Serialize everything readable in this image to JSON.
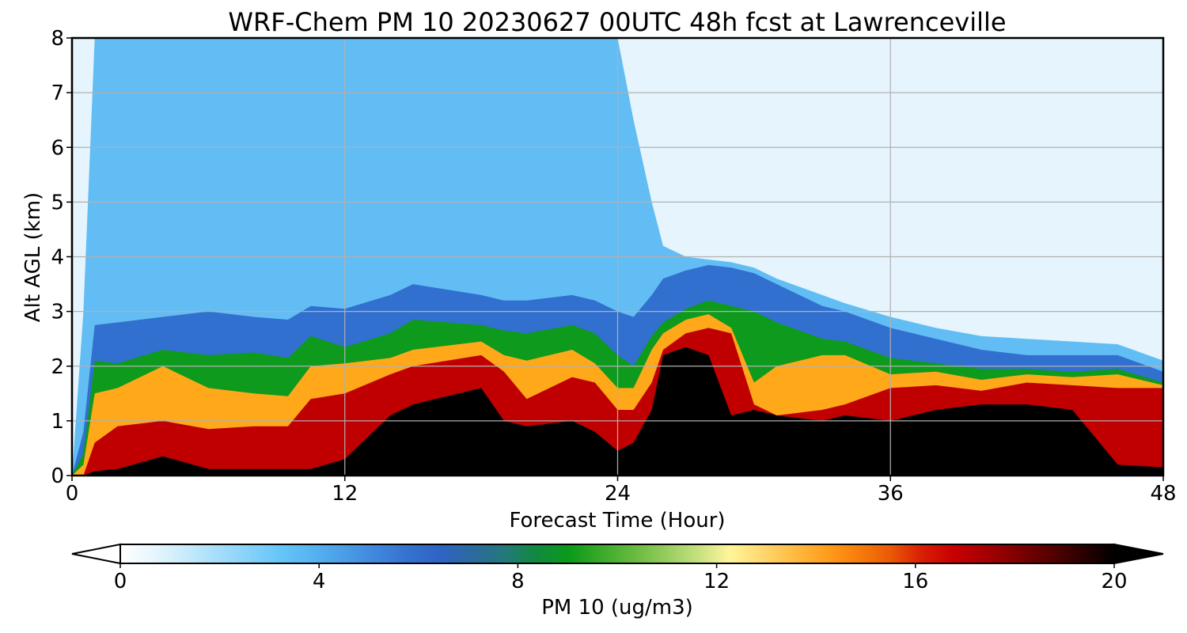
{
  "chart_data": {
    "type": "heatmap",
    "title": "WRF-Chem PM 10  20230627 00UTC 48h fcst at Lawrenceville",
    "xlabel": "Forecast Time (Hour)",
    "ylabel": "Alt AGL (km)",
    "xlim": [
      0,
      48
    ],
    "ylim": [
      0,
      8
    ],
    "xticks": [
      "0",
      "12",
      "24",
      "36",
      "48"
    ],
    "yticks": [
      "0",
      "1",
      "2",
      "3",
      "4",
      "5",
      "6",
      "7",
      "8"
    ],
    "grid": true,
    "colorbar": {
      "label": "PM 10  (ug/m3)",
      "range": [
        0,
        20
      ],
      "ticks": [
        "0",
        "4",
        "8",
        "12",
        "16",
        "20"
      ],
      "extend": "both",
      "colors": [
        "#ffffff",
        "#e8f6fd",
        "#c9ebfb",
        "#a7defa",
        "#86d2fa",
        "#66c5f7",
        "#56b3f0",
        "#4a9de6",
        "#3f86dc",
        "#3571cf",
        "#2f63c4",
        "#2c6a9e",
        "#23787a",
        "#108a3e",
        "#0a9a1a",
        "#3aaa2a",
        "#66ba3e",
        "#95cc5c",
        "#c4e07e",
        "#fff59a",
        "#ffd870",
        "#ffbb44",
        "#ff9e1c",
        "#f77e0c",
        "#eb5a06",
        "#d91e04",
        "#c80000",
        "#a50000",
        "#7e0000",
        "#560000",
        "#2c0000",
        "#000000"
      ]
    },
    "x_hours": [
      0,
      0.5,
      1,
      2,
      4,
      6,
      8,
      9.5,
      10.5,
      12,
      14,
      15,
      18,
      19,
      20,
      22,
      23,
      24,
      24.7,
      25.5,
      26,
      27,
      28,
      29,
      30,
      31,
      33,
      34,
      36,
      38,
      40,
      42,
      44,
      46,
      48
    ],
    "layer_boundaries_km": {
      "very_high_ge_19": [
        0,
        0,
        0.08,
        0.12,
        0.35,
        0.12,
        0.12,
        0.12,
        0.12,
        0.3,
        1.1,
        1.3,
        1.6,
        1.0,
        0.9,
        1.0,
        0.8,
        0.45,
        0.6,
        1.2,
        2.2,
        2.35,
        2.2,
        1.1,
        1.2,
        1.1,
        1.0,
        1.1,
        1.0,
        1.2,
        1.3,
        1.3,
        1.2,
        0.2,
        0.15
      ],
      "red_ge_15": [
        0,
        0,
        0.6,
        0.9,
        1.0,
        0.85,
        0.9,
        0.9,
        1.4,
        1.5,
        1.85,
        2.0,
        2.2,
        1.9,
        1.4,
        1.8,
        1.7,
        1.2,
        1.2,
        1.7,
        2.3,
        2.6,
        2.7,
        2.6,
        1.3,
        1.1,
        1.2,
        1.3,
        1.6,
        1.65,
        1.55,
        1.7,
        1.65,
        1.6,
        1.6
      ],
      "yellow_ge_10": [
        0,
        0.2,
        1.5,
        1.6,
        2.0,
        1.6,
        1.5,
        1.45,
        2.0,
        2.05,
        2.15,
        2.3,
        2.45,
        2.2,
        2.1,
        2.3,
        2.05,
        1.6,
        1.6,
        2.3,
        2.6,
        2.85,
        2.95,
        2.7,
        1.7,
        2.0,
        2.2,
        2.2,
        1.85,
        1.9,
        1.75,
        1.85,
        1.8,
        1.85,
        1.65
      ],
      "green_ge_8": [
        0,
        0.4,
        2.1,
        2.05,
        2.3,
        2.2,
        2.25,
        2.15,
        2.55,
        2.35,
        2.6,
        2.85,
        2.75,
        2.65,
        2.6,
        2.75,
        2.6,
        2.2,
        2.0,
        2.55,
        2.8,
        3.05,
        3.2,
        3.1,
        3.0,
        2.8,
        2.5,
        2.45,
        2.15,
        2.05,
        1.95,
        1.95,
        1.9,
        1.95,
        1.7
      ],
      "blue_ge_5": [
        0,
        0.8,
        2.75,
        2.8,
        2.9,
        3.0,
        2.9,
        2.85,
        3.1,
        3.05,
        3.3,
        3.5,
        3.3,
        3.2,
        3.2,
        3.3,
        3.2,
        3.0,
        2.9,
        3.3,
        3.6,
        3.75,
        3.85,
        3.8,
        3.7,
        3.5,
        3.1,
        3.0,
        2.7,
        2.5,
        2.3,
        2.2,
        2.2,
        2.2,
        1.9
      ],
      "lightblue_ge_2": [
        0,
        3.0,
        8,
        8,
        8,
        8,
        8,
        8,
        8,
        8,
        8,
        8,
        8,
        8,
        8,
        8,
        8,
        8,
        6.5,
        5.0,
        4.2,
        4.0,
        3.95,
        3.9,
        3.8,
        3.6,
        3.3,
        3.15,
        2.9,
        2.7,
        2.55,
        2.5,
        2.45,
        2.4,
        2.1
      ]
    },
    "layer_colors": {
      "very_high_ge_19": "#000000",
      "red_ge_15": "#c00000",
      "yellow_ge_10": "#ffa81a",
      "green_ge_8": "#0e9a1c",
      "blue_ge_5": "#3170cf",
      "lightblue_ge_2": "#62bdf5",
      "background_lt_2": "#e6f5fd"
    }
  }
}
